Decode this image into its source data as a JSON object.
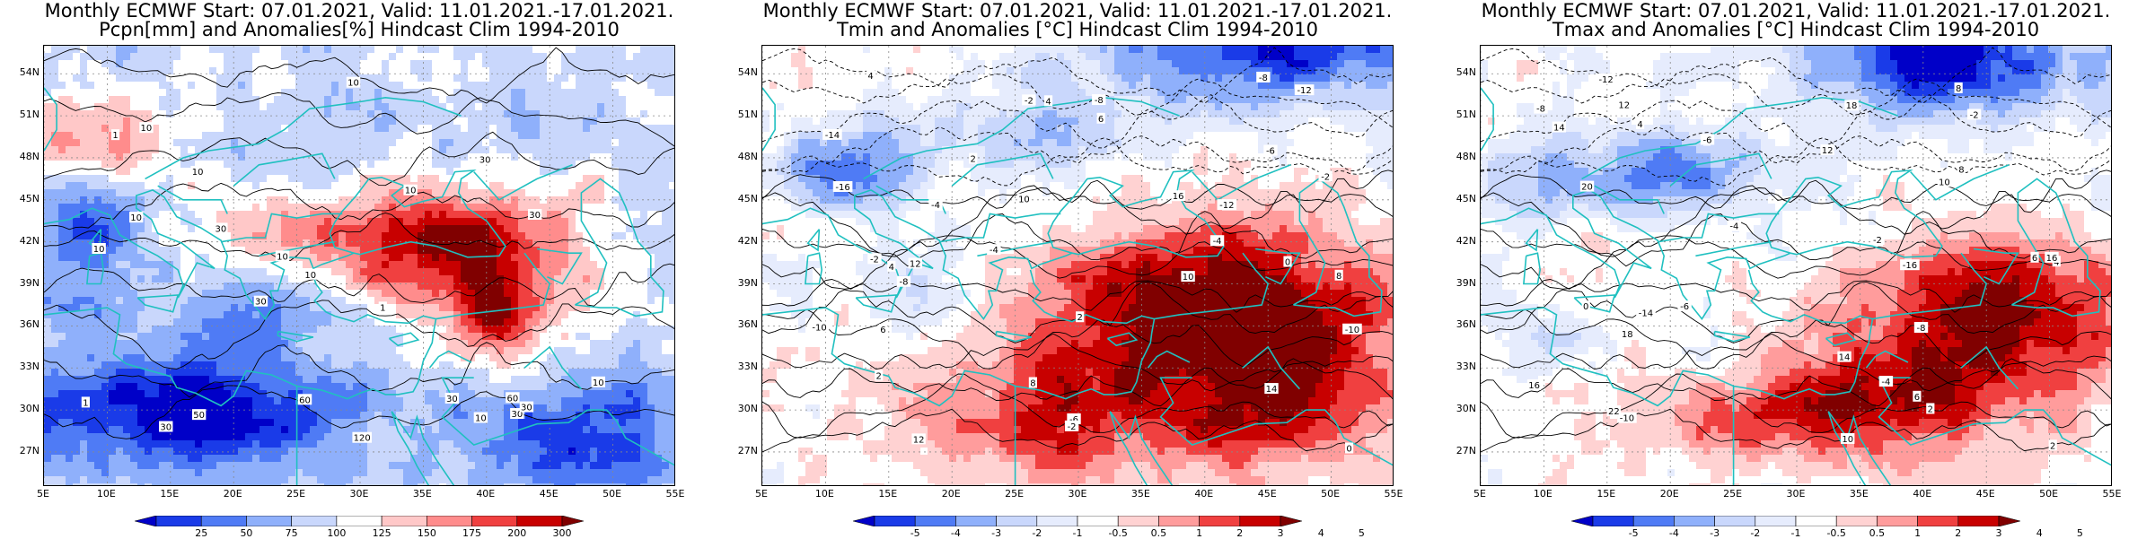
{
  "panels": [
    {
      "title_line1": "Monthly ECMWF Start: 07.01.2021, Valid: 11.01.2021.-17.01.2021.",
      "title_line2": "Pcpn[mm] and Anomalies[%] Hindcast Clim 1994-2010",
      "variable": "precipitation",
      "colorbar": {
        "labels": [
          "25",
          "50",
          "75",
          "100",
          "125",
          "150",
          "175",
          "200",
          "300"
        ],
        "colors": [
          "#0000c8",
          "#1a3be8",
          "#4f7bf5",
          "#8fb0fb",
          "#c9d7fc",
          "#ffffff",
          "#ffc8c8",
          "#ff8c8c",
          "#f04040",
          "#c80000",
          "#800000"
        ]
      },
      "contour_labels": [
        "10",
        "10",
        "30",
        "30",
        "30",
        "30",
        "120",
        "50",
        "10",
        "60",
        "30",
        "30",
        "60",
        "10",
        "10",
        "30",
        "10",
        "10",
        "30",
        "10",
        "1",
        "1",
        "10",
        "10",
        "1"
      ]
    },
    {
      "title_line1": "Monthly ECMWF Start: 07.01.2021, Valid: 11.01.2021.-17.01.2021.",
      "title_line2": "Tmin and Anomalies [°C] Hindcast Clim 1994-2010",
      "variable": "tmin",
      "colorbar": {
        "labels": [
          "-5",
          "-4",
          "-3",
          "-2",
          "-1",
          "-0.5",
          "0.5",
          "1",
          "2",
          "3",
          "4",
          "5"
        ],
        "colors": [
          "#0000c8",
          "#1a3be8",
          "#4f7bf5",
          "#8fb0fb",
          "#c9d7fc",
          "#e6ecfd",
          "#ffffff",
          "#ffd2d2",
          "#ff9c9c",
          "#f04040",
          "#c80000",
          "#800000"
        ]
      },
      "contour_labels": [
        "-12",
        "-10",
        "-8",
        "-16",
        "-14",
        "-12",
        "-10",
        "-8",
        "-6",
        "-4",
        "-2",
        "-4",
        "-6",
        "-8",
        "-2",
        "0",
        "2",
        "4",
        "6",
        "8",
        "10",
        "12",
        "14",
        "16",
        "12",
        "10",
        "8",
        "6",
        "4",
        "2",
        "0",
        "-2",
        "-4",
        "-2",
        "2",
        "4"
      ]
    },
    {
      "title_line1": "Monthly ECMWF Start: 07.01.2021, Valid: 11.01.2021.-17.01.2021.",
      "title_line2": "Tmax and Anomalies [°C] Hindcast Clim 1994-2010",
      "variable": "tmax",
      "colorbar": {
        "labels": [
          "-5",
          "-4",
          "-3",
          "-2",
          "-1",
          "-0.5",
          "0.5",
          "1",
          "2",
          "3",
          "4",
          "5"
        ],
        "colors": [
          "#0000c8",
          "#1a3be8",
          "#4f7bf5",
          "#8fb0fb",
          "#c9d7fc",
          "#e6ecfd",
          "#ffffff",
          "#ffd2d2",
          "#ff9c9c",
          "#f04040",
          "#c80000",
          "#800000"
        ]
      },
      "contour_labels": [
        "-16",
        "-14",
        "-12",
        "-10",
        "-8",
        "-6",
        "-4",
        "-2",
        "0",
        "2",
        "4",
        "6",
        "8",
        "10",
        "12",
        "14",
        "16",
        "18",
        "20",
        "22",
        "18",
        "16",
        "14",
        "12",
        "10",
        "8",
        "6",
        "4",
        "2",
        "-2",
        "-4",
        "-6",
        "-8"
      ]
    }
  ],
  "y_ticks": [
    "54N",
    "51N",
    "48N",
    "45N",
    "42N",
    "39N",
    "36N",
    "33N",
    "30N",
    "27N"
  ],
  "x_ticks": [
    "5E",
    "10E",
    "15E",
    "20E",
    "25E",
    "30E",
    "35E",
    "40E",
    "45E",
    "50E",
    "55E"
  ],
  "map_extent": {
    "lon": [
      5,
      55
    ],
    "lat": [
      24.5,
      56
    ]
  },
  "colors": {
    "coastline": "#20c0c0",
    "contour": "#000000",
    "grid": "#888888"
  }
}
